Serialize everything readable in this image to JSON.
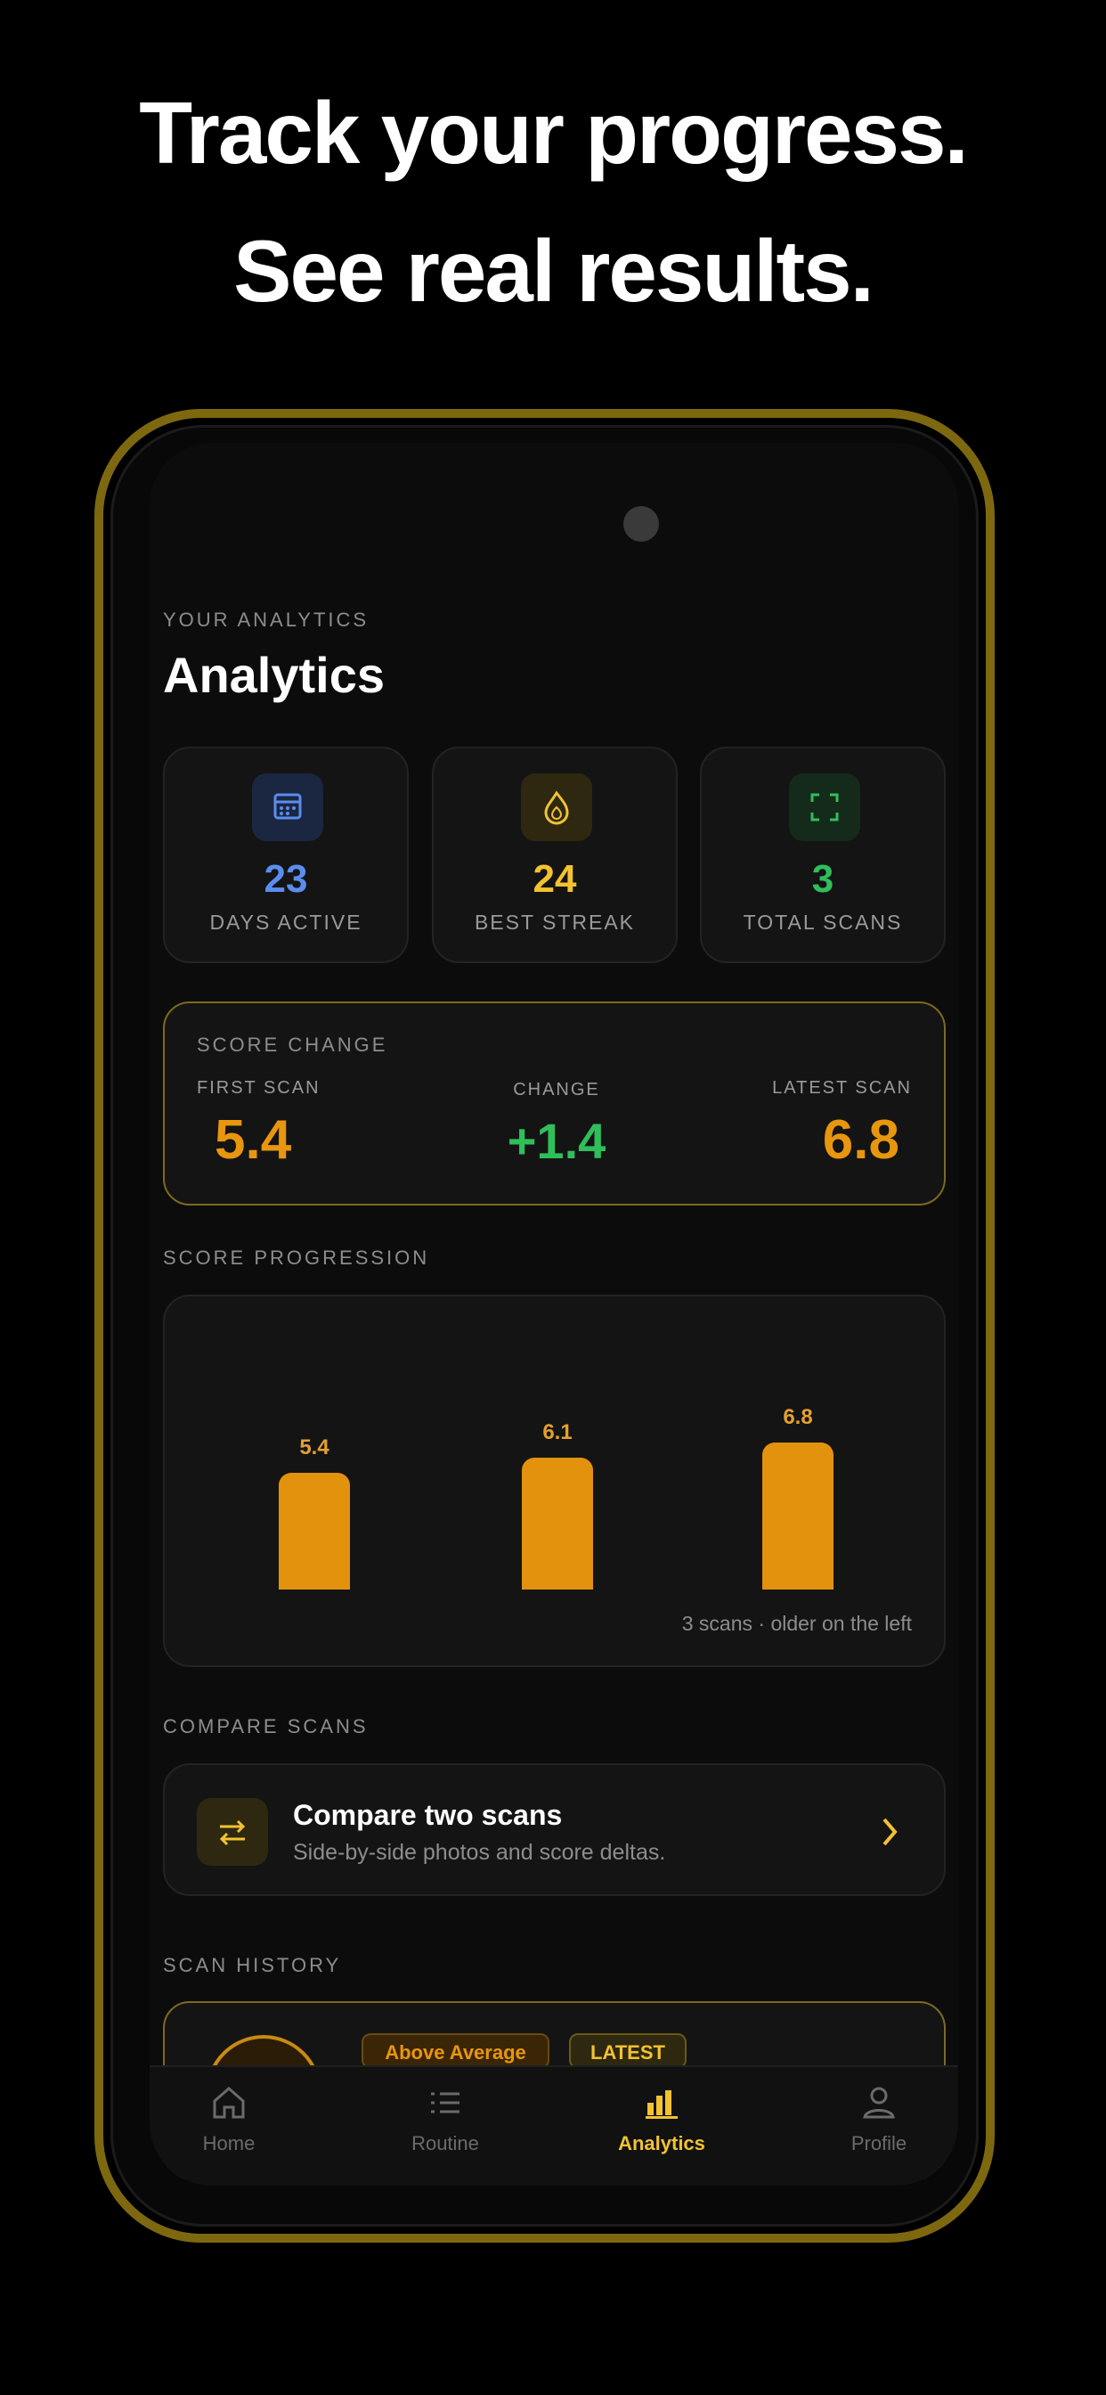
{
  "headline": {
    "line1": "Track your progress.",
    "line2": "See real results."
  },
  "header": {
    "eyebrow": "YOUR ANALYTICS",
    "title": "Analytics"
  },
  "stats": [
    {
      "value": 23,
      "label": "DAYS ACTIVE"
    },
    {
      "value": 24,
      "label": "BEST STREAK"
    },
    {
      "value": 3,
      "label": "TOTAL SCANS"
    }
  ],
  "score_change": {
    "title": "SCORE CHANGE",
    "first_scan": {
      "label": "FIRST SCAN",
      "value": 5.4
    },
    "change": {
      "label": "CHANGE",
      "value": "+1.4"
    },
    "latest_scan": {
      "label": "LATEST SCAN",
      "value": 6.8
    }
  },
  "score_progression": {
    "title": "SCORE PROGRESSION",
    "values": [
      5.4,
      6.1,
      6.8
    ],
    "note": "3 scans · older on the left"
  },
  "compare_scans": {
    "title": "COMPARE SCANS",
    "card_title": "Compare two scans",
    "card_subtitle": "Side-by-side photos and score deltas."
  },
  "scan_history": {
    "title": "SCAN HISTORY",
    "badges": [
      "Above Average",
      "LATEST"
    ]
  },
  "nav": [
    "Home",
    "Routine",
    "Analytics",
    "Profile"
  ]
}
